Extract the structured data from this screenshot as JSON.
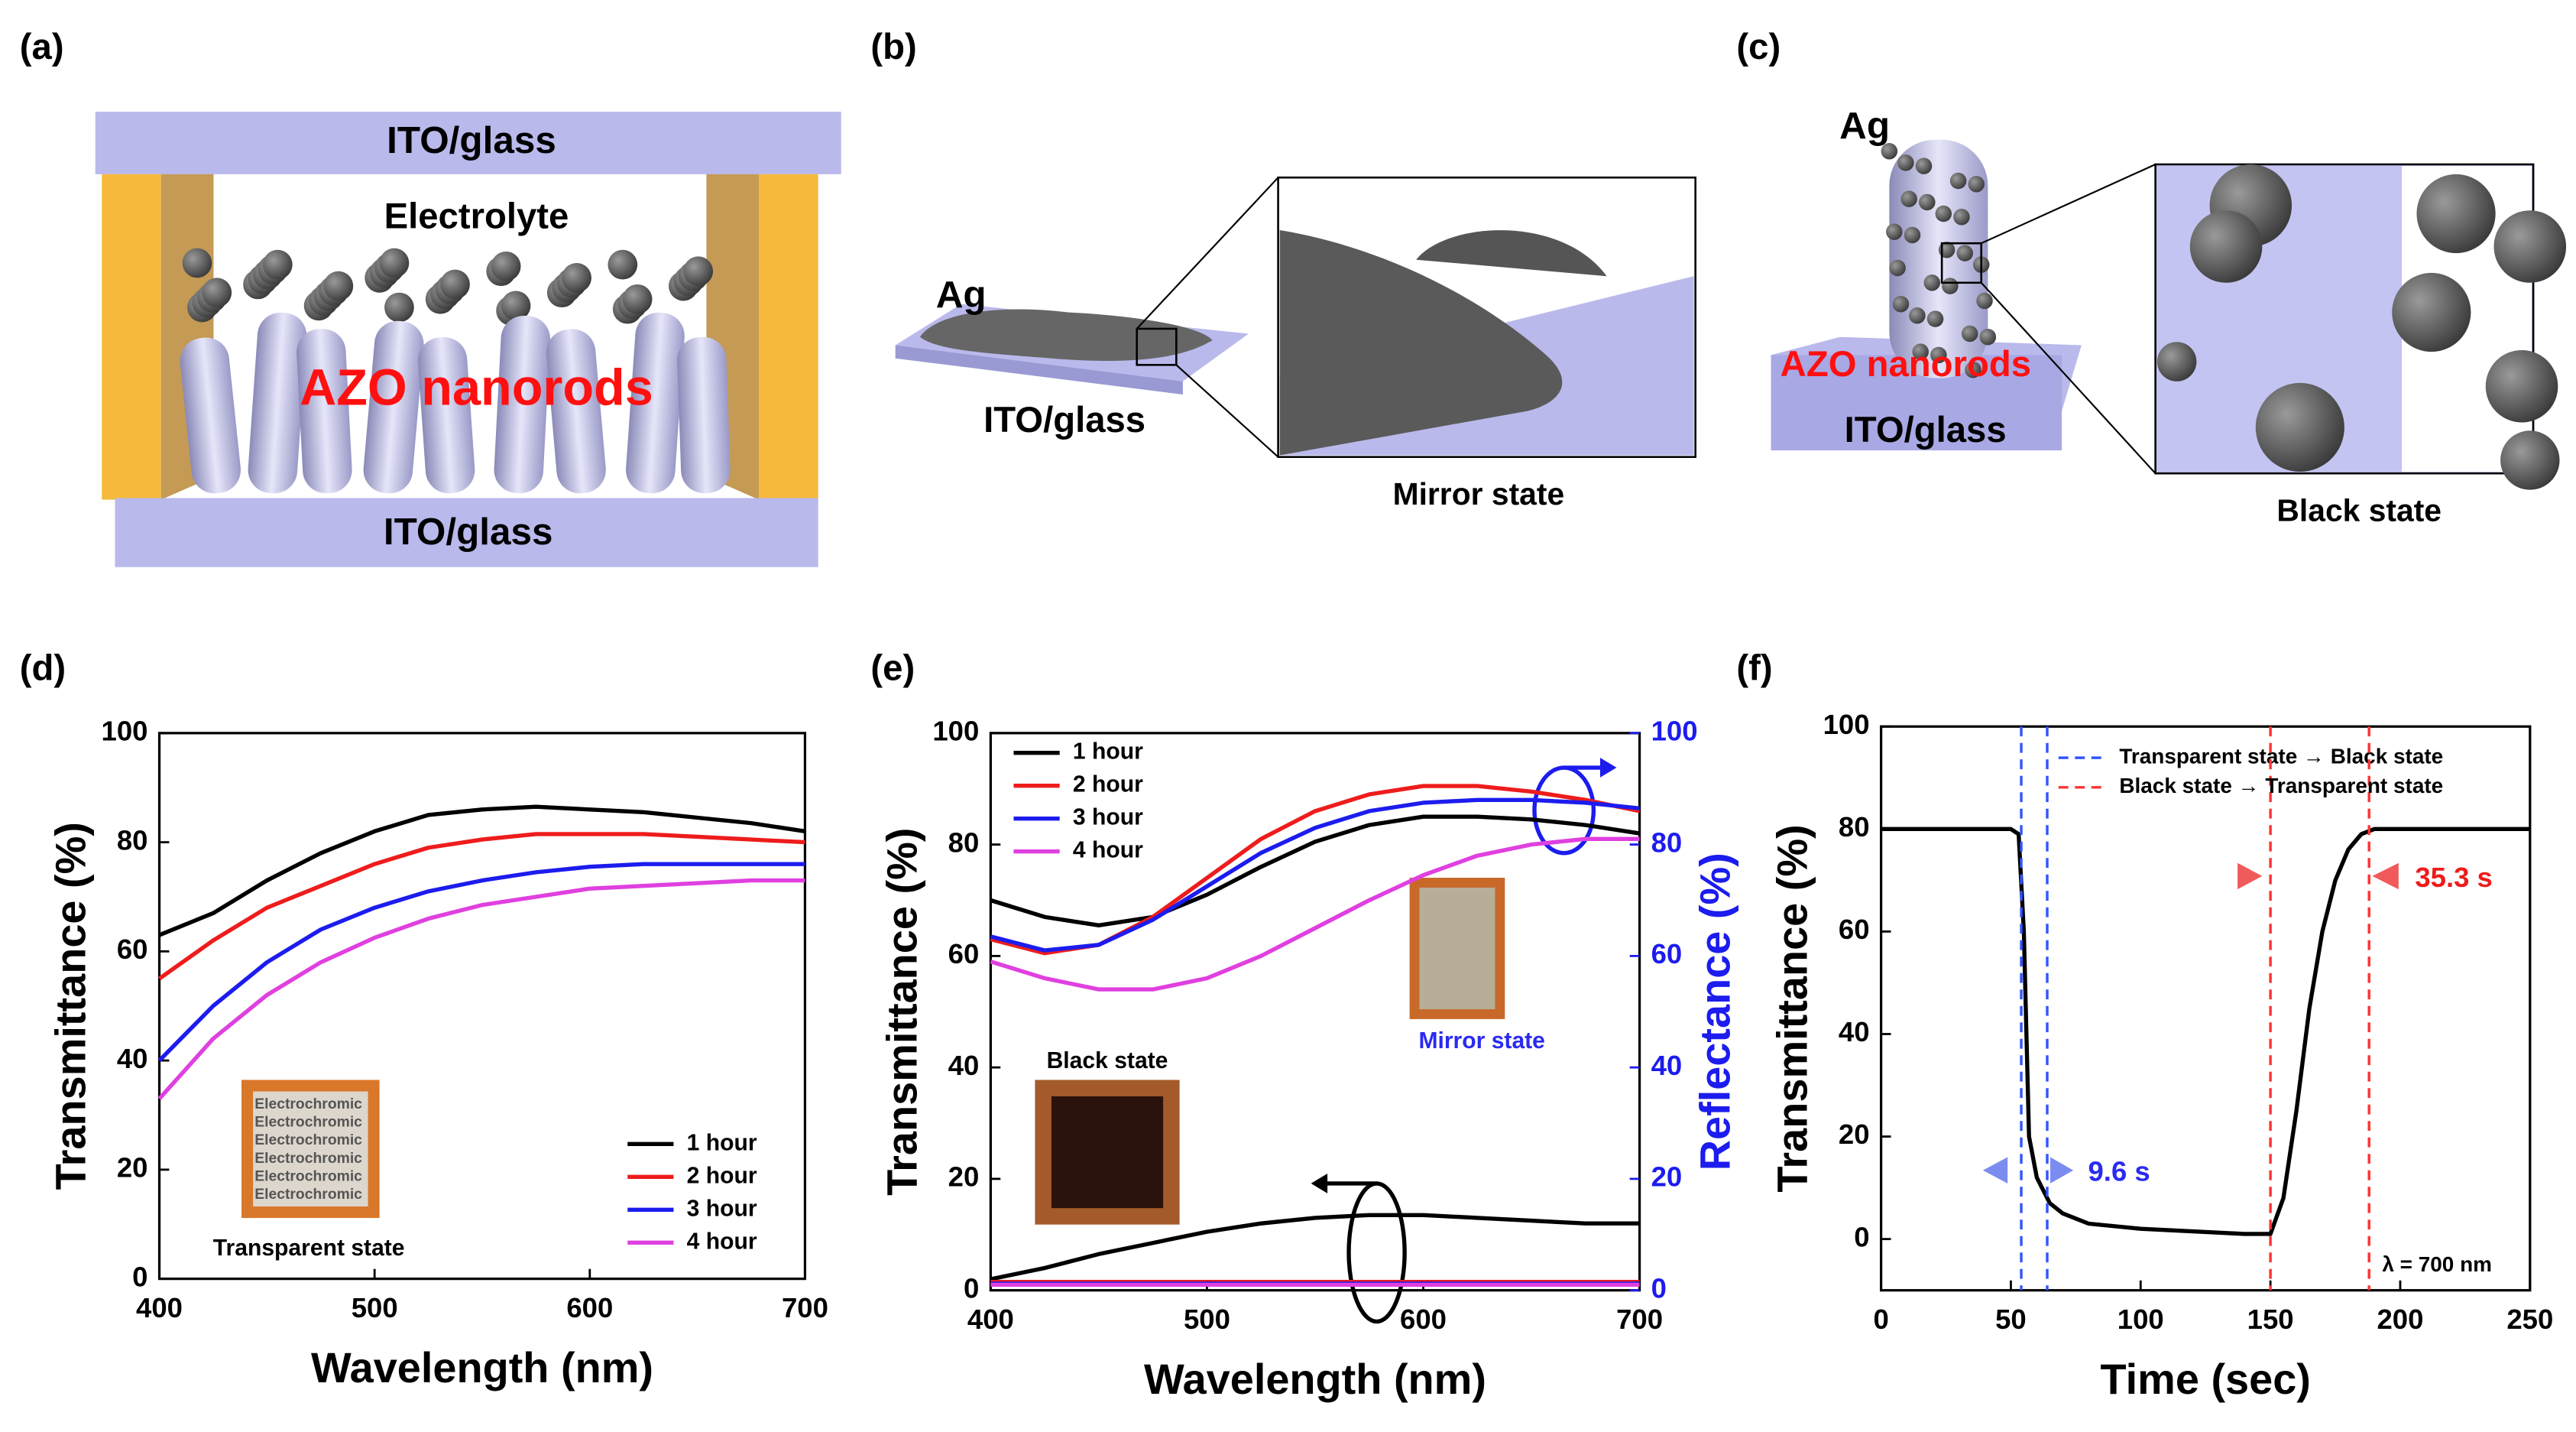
{
  "panels": [
    "(a)",
    "(b)",
    "(c)",
    "(d)",
    "(e)",
    "(f)"
  ],
  "schematics": {
    "a": {
      "top": "ITO/glass",
      "middle": "Electrolyte",
      "rods": "AZO nanorods",
      "bottom": "ITO/glass"
    },
    "b": {
      "particle": "Ag",
      "substrate": "ITO/glass",
      "caption": "Mirror state"
    },
    "c": {
      "particle": "Ag",
      "rods": "AZO nanorods",
      "substrate": "ITO/glass",
      "caption": "Black state"
    }
  },
  "chart_data": [
    {
      "type": "line",
      "xlabel": "Wavelength (nm)",
      "ylabel": "Transmittance (%)",
      "x": [
        400,
        425,
        450,
        475,
        500,
        525,
        550,
        575,
        600,
        625,
        650,
        675,
        700
      ],
      "series": [
        {
          "name": "1 hour",
          "color": "#000000",
          "values": [
            63,
            67,
            73,
            78,
            82,
            85,
            86,
            86.5,
            86,
            85.5,
            84.5,
            83.5,
            82
          ]
        },
        {
          "name": "2 hour",
          "color": "#ee1c1c",
          "values": [
            55,
            62,
            68,
            72,
            76,
            79,
            80.5,
            81.5,
            81.5,
            81.5,
            81,
            80.5,
            80
          ]
        },
        {
          "name": "3 hour",
          "color": "#1c1cee",
          "values": [
            40,
            50,
            58,
            64,
            68,
            71,
            73,
            74.5,
            75.5,
            76,
            76,
            76,
            76
          ]
        },
        {
          "name": "4 hour",
          "color": "#e040e0",
          "values": [
            33,
            44,
            52,
            58,
            62.5,
            66,
            68.5,
            70,
            71.5,
            72,
            72.5,
            73,
            73
          ]
        }
      ],
      "xlim": [
        400,
        700
      ],
      "xticks": [
        400,
        500,
        600,
        700
      ],
      "ylim": [
        0,
        100
      ],
      "yticks": [
        0,
        20,
        40,
        60,
        80,
        100
      ],
      "legend": "lower right",
      "inset_label": "Transparent state",
      "inset_text": "Electrochromic"
    },
    {
      "type": "line",
      "xlabel": "Wavelength (nm)",
      "ylabel": "Transmittance (%)",
      "y2label": "Reflectance (%)",
      "x": [
        400,
        425,
        450,
        475,
        500,
        525,
        550,
        575,
        600,
        625,
        650,
        675,
        700
      ],
      "series": [
        {
          "name": "1 hour",
          "color": "#000000",
          "axis": "y2",
          "values": [
            70,
            67,
            65.5,
            67,
            71,
            76,
            80.5,
            83.5,
            85,
            85,
            84.5,
            83.5,
            82
          ]
        },
        {
          "name": "2 hour",
          "color": "#ee1c1c",
          "axis": "y2",
          "values": [
            63,
            60.5,
            62,
            67,
            74,
            81,
            86,
            89,
            90.5,
            90.5,
            89.5,
            88,
            86
          ]
        },
        {
          "name": "3 hour",
          "color": "#1c1cee",
          "axis": "y2",
          "values": [
            63.5,
            61,
            62,
            66.5,
            72.5,
            78.5,
            83,
            86,
            87.5,
            88,
            88,
            87.5,
            86.5
          ]
        },
        {
          "name": "4 hour",
          "color": "#e040e0",
          "axis": "y2",
          "values": [
            59,
            56,
            54,
            54,
            56,
            60,
            65,
            70,
            74.5,
            78,
            80,
            81,
            81
          ]
        },
        {
          "name": "1 hour",
          "color": "#000000",
          "values": [
            2,
            4,
            6.5,
            8.5,
            10.5,
            12,
            13,
            13.5,
            13.5,
            13,
            12.5,
            12,
            12
          ]
        },
        {
          "name": "2 hour",
          "color": "#ee1c1c",
          "values": [
            1.5,
            1.5,
            1.5,
            1.5,
            1.5,
            1.5,
            1.5,
            1.5,
            1.5,
            1.5,
            1.5,
            1.5,
            1.5
          ]
        },
        {
          "name": "3 hour",
          "color": "#1c1cee",
          "values": [
            1.2,
            1.2,
            1.2,
            1.2,
            1.2,
            1.2,
            1.2,
            1.2,
            1.2,
            1.2,
            1.2,
            1.2,
            1.2
          ]
        },
        {
          "name": "4 hour",
          "color": "#e040e0",
          "values": [
            1,
            1,
            1,
            1,
            1,
            1,
            1,
            1,
            1,
            1,
            1,
            1,
            1
          ]
        }
      ],
      "xlim": [
        400,
        700
      ],
      "xticks": [
        400,
        500,
        600,
        700
      ],
      "ylim": [
        0,
        100
      ],
      "yticks": [
        0,
        20,
        40,
        60,
        80,
        100
      ],
      "y2lim": [
        0,
        100
      ],
      "y2ticks": [
        0,
        20,
        40,
        60,
        80,
        100
      ],
      "y2color": "#1c1cee",
      "legend": "upper left",
      "insets": [
        {
          "label": "Black state"
        },
        {
          "label": "Mirror state",
          "color": "#2a2af0"
        }
      ]
    },
    {
      "type": "line",
      "xlabel": "Time (sec)",
      "ylabel": "Transmittance (%)",
      "x": [
        0,
        50,
        53,
        55,
        57,
        60,
        65,
        70,
        80,
        100,
        120,
        140,
        150,
        155,
        160,
        165,
        170,
        175,
        180,
        185,
        190,
        200,
        250
      ],
      "values": [
        80,
        80,
        79,
        60,
        20,
        12,
        7,
        5,
        3,
        2,
        1.5,
        1,
        1,
        8,
        25,
        45,
        60,
        70,
        76,
        79,
        80,
        80,
        80
      ],
      "color": "#000000",
      "xlim": [
        0,
        250
      ],
      "xticks": [
        0,
        50,
        100,
        150,
        200,
        250
      ],
      "ylim": [
        -10,
        100
      ],
      "yticks": [
        0,
        20,
        40,
        60,
        80,
        100
      ],
      "vline_groups": [
        {
          "name": "Transparent state → Black state",
          "color": "#3355ff",
          "x": [
            54,
            64
          ]
        },
        {
          "name": "Black state → Transparent state",
          "color": "#ff3333",
          "x": [
            150,
            188
          ]
        }
      ],
      "annotations": [
        {
          "text": "9.6 s",
          "color": "#2a2af0"
        },
        {
          "text": "35.3 s",
          "color": "#ee1c1c"
        },
        {
          "text": "λ = 700 nm"
        }
      ]
    }
  ]
}
